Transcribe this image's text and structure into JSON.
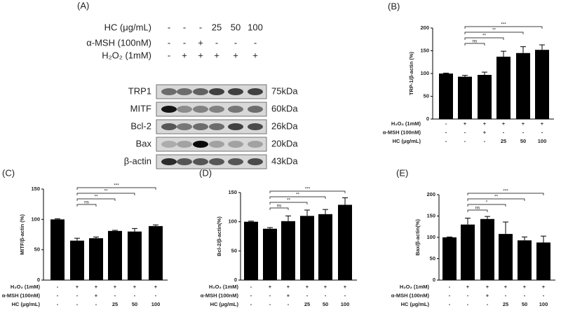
{
  "panel_a": {
    "panel": "(A)",
    "conditions": [
      {
        "label": "HC (μg/mL)",
        "values": [
          "-",
          "-",
          "-",
          "25",
          "50",
          "100"
        ]
      },
      {
        "label": "α-MSH (100nM)",
        "values": [
          "-",
          "-",
          "+",
          "-",
          "-",
          "-"
        ]
      },
      {
        "label": "H₂O₂ (1mM)",
        "values": [
          "-",
          "+",
          "+",
          "+",
          "+",
          "+"
        ]
      }
    ],
    "blots": [
      {
        "protein": "TRP1",
        "size": "75kDa"
      },
      {
        "protein": "MITF",
        "size": "60kDa"
      },
      {
        "protein": "Bcl-2",
        "size": "26kDa"
      },
      {
        "protein": "Bax",
        "size": "20kDa"
      },
      {
        "protein": "β-actin",
        "size": "43kDa"
      }
    ]
  },
  "chart_data": [
    {
      "type": "bar",
      "panel": "(B)",
      "y_label": "TRP-1/β-actin (%)",
      "ylim": [
        0,
        200
      ],
      "yticks": [
        0,
        50,
        100,
        150,
        200
      ],
      "values": [
        100,
        93,
        97,
        137,
        145,
        152
      ],
      "errors": [
        1,
        3,
        6,
        12,
        14,
        11
      ],
      "color": "#000000",
      "significance": [
        "ns",
        "**",
        "**",
        "***"
      ],
      "conditions": [
        {
          "label": "H₂O₂ (1mM)",
          "values": [
            "-",
            "+",
            "+",
            "+",
            "+",
            "+"
          ]
        },
        {
          "label": "α-MSH (100nM)",
          "values": [
            "-",
            "-",
            "+",
            "-",
            "-",
            "-"
          ]
        },
        {
          "label": "HC (μg/mL)",
          "values": [
            "-",
            "-",
            "-",
            "25",
            "50",
            "100"
          ]
        }
      ]
    },
    {
      "type": "bar",
      "panel": "(C)",
      "y_label": "MITF/β-actin (%)",
      "ylim": [
        0,
        150
      ],
      "yticks": [
        0,
        50,
        100,
        150
      ],
      "values": [
        100,
        65,
        69,
        81,
        80,
        89
      ],
      "errors": [
        1,
        4,
        2,
        1,
        5,
        2
      ],
      "color": "#000000",
      "significance": [
        "ns",
        "**",
        "**",
        "***"
      ],
      "conditions": [
        {
          "label": "H₂O₂ (1mM)",
          "values": [
            "-",
            "+",
            "+",
            "+",
            "+",
            "+"
          ]
        },
        {
          "label": "α-MSH (100nM)",
          "values": [
            "-",
            "-",
            "+",
            "-",
            "-",
            "-"
          ]
        },
        {
          "label": "HC (μg/mL)",
          "values": [
            "-",
            "-",
            "-",
            "25",
            "50",
            "100"
          ]
        }
      ]
    },
    {
      "type": "bar",
      "panel": "(D)",
      "y_label": "Bcl-2/β-actin(%)",
      "ylim": [
        0,
        150
      ],
      "yticks": [
        0,
        50,
        100,
        150
      ],
      "values": [
        100,
        88,
        101,
        110,
        113,
        129
      ],
      "errors": [
        1,
        2,
        9,
        10,
        8,
        12
      ],
      "color": "#000000",
      "significance": [
        "ns",
        "**",
        "**",
        "***"
      ],
      "conditions": [
        {
          "label": "H₂O₂ (1mM)",
          "values": [
            "-",
            "+",
            "+",
            "+",
            "+",
            "+"
          ]
        },
        {
          "label": "α-MSH (100nM)",
          "values": [
            "-",
            "-",
            "+",
            "-",
            "-",
            "-"
          ]
        },
        {
          "label": "HC (μg/mL)",
          "values": [
            "-",
            "-",
            "-",
            "25",
            "50",
            "100"
          ]
        }
      ]
    },
    {
      "type": "bar",
      "panel": "(E)",
      "y_label": "Bax/β-actin(%)",
      "ylim": [
        0,
        200
      ],
      "yticks": [
        0,
        50,
        100,
        150,
        200
      ],
      "values": [
        100,
        130,
        143,
        108,
        93,
        88
      ],
      "errors": [
        1,
        15,
        6,
        28,
        8,
        15
      ],
      "color": "#000000",
      "significance": [
        "ns",
        "*",
        "**",
        "***"
      ],
      "conditions": [
        {
          "label": "H₂O₂ (1mM)",
          "values": [
            "-",
            "+",
            "+",
            "+",
            "+",
            "+"
          ]
        },
        {
          "label": "α-MSH (100nM)",
          "values": [
            "-",
            "-",
            "+",
            "-",
            "-",
            "-"
          ]
        },
        {
          "label": "HC (μg/mL)",
          "values": [
            "-",
            "-",
            "-",
            "25",
            "50",
            "100"
          ]
        }
      ]
    }
  ]
}
